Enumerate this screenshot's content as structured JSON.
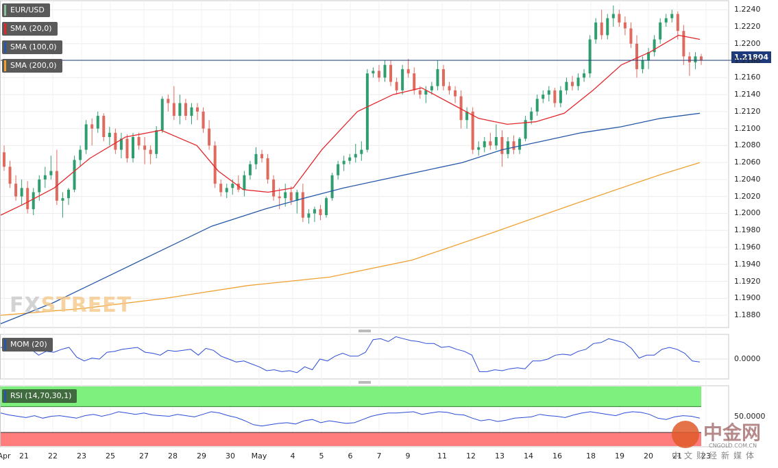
{
  "chart_data": {
    "type": "candlestick",
    "symbol": "EUR/USD",
    "indicators": [
      {
        "label": "SMA (20,0)",
        "color": "#e3262b"
      },
      {
        "label": "SMA (100,0)",
        "color": "#2457a8"
      },
      {
        "label": "SMA (200,0)",
        "color": "#f0a030"
      }
    ],
    "last_price": "1.21804",
    "y_ticks": [
      "1.2240",
      "1.2220",
      "1.2200",
      "1.2180",
      "1.2160",
      "1.2140",
      "1.2120",
      "1.2100",
      "1.2080",
      "1.2060",
      "1.2040",
      "1.2020",
      "1.2000",
      "1.1980",
      "1.1960",
      "1.1940",
      "1.1920",
      "1.1900",
      "1.1880"
    ],
    "ylim": [
      1.1868,
      1.2245
    ],
    "x_ticks": [
      "Apr",
      "21",
      "22",
      "23",
      "25",
      "27",
      "28",
      "29",
      "30",
      "May",
      "4",
      "5",
      "6",
      "7",
      "9",
      "11",
      "12",
      "13",
      "14",
      "16",
      "18",
      "19",
      "20",
      "21",
      "23"
    ],
    "candles": [
      [
        1.2072,
        1.208,
        1.205,
        1.2055
      ],
      [
        1.2055,
        1.2062,
        1.203,
        1.2035
      ],
      [
        1.2035,
        1.2045,
        1.2015,
        1.202
      ],
      [
        1.202,
        1.204,
        1.201,
        1.203
      ],
      [
        1.203,
        1.2038,
        1.2,
        1.2005
      ],
      [
        1.2005,
        1.203,
        1.1998,
        1.2025
      ],
      [
        1.2025,
        1.2045,
        1.2015,
        1.204
      ],
      [
        1.204,
        1.2055,
        1.203,
        1.2045
      ],
      [
        1.2045,
        1.2068,
        1.204,
        1.205
      ],
      [
        1.205,
        1.2075,
        1.201,
        1.2015
      ],
      [
        1.2015,
        1.2025,
        1.1995,
        1.2018
      ],
      [
        1.2018,
        1.203,
        1.201,
        1.2028
      ],
      [
        1.2028,
        1.2068,
        1.2025,
        1.2063
      ],
      [
        1.2063,
        1.208,
        1.2055,
        1.2075
      ],
      [
        1.2075,
        1.211,
        1.207,
        1.2105
      ],
      [
        1.2105,
        1.2112,
        1.208,
        1.21
      ],
      [
        1.21,
        1.212,
        1.2095,
        1.2115
      ],
      [
        1.2115,
        1.2118,
        1.2085,
        1.209
      ],
      [
        1.209,
        1.2102,
        1.208,
        1.2095
      ],
      [
        1.2095,
        1.21,
        1.207,
        1.2075
      ],
      [
        1.2075,
        1.2095,
        1.2065,
        1.2088
      ],
      [
        1.2088,
        1.2093,
        1.206,
        1.2065
      ],
      [
        1.2065,
        1.2095,
        1.206,
        1.209
      ],
      [
        1.209,
        1.2095,
        1.2075,
        1.208
      ],
      [
        1.208,
        1.209,
        1.2058,
        1.2075
      ],
      [
        1.2075,
        1.208,
        1.2058,
        1.207
      ],
      [
        1.207,
        1.2103,
        1.2065,
        1.2098
      ],
      [
        1.2098,
        1.2138,
        1.2095,
        1.2135
      ],
      [
        1.2135,
        1.214,
        1.212,
        1.213
      ],
      [
        1.213,
        1.215,
        1.211,
        1.2115
      ],
      [
        1.2115,
        1.214,
        1.2105,
        1.213
      ],
      [
        1.213,
        1.2135,
        1.211,
        1.2115
      ],
      [
        1.2115,
        1.213,
        1.2105,
        1.2125
      ],
      [
        1.2125,
        1.213,
        1.211,
        1.212
      ],
      [
        1.212,
        1.2125,
        1.2095,
        1.21
      ],
      [
        1.21,
        1.211,
        1.2075,
        1.208
      ],
      [
        1.208,
        1.2085,
        1.203,
        1.2035
      ],
      [
        1.2035,
        1.204,
        1.202,
        1.2025
      ],
      [
        1.2025,
        1.2035,
        1.2018,
        1.203
      ],
      [
        1.203,
        1.204,
        1.2022,
        1.2035
      ],
      [
        1.2035,
        1.2045,
        1.2025,
        1.2028
      ],
      [
        1.2028,
        1.205,
        1.202,
        1.2045
      ],
      [
        1.2045,
        1.2062,
        1.204,
        1.2058
      ],
      [
        1.2058,
        1.2078,
        1.2052,
        1.207
      ],
      [
        1.207,
        1.2075,
        1.206,
        1.2065
      ],
      [
        1.2065,
        1.207,
        1.2035,
        1.204
      ],
      [
        1.204,
        1.2045,
        1.2015,
        1.202
      ],
      [
        1.202,
        1.203,
        1.2005,
        1.2018
      ],
      [
        1.2018,
        1.2035,
        1.2008,
        1.2025
      ],
      [
        1.2025,
        1.2032,
        1.201,
        1.2015
      ],
      [
        1.2015,
        1.2028,
        1.2,
        1.2025
      ],
      [
        1.2025,
        1.2035,
        1.199,
        1.1995
      ],
      [
        1.1995,
        1.2005,
        1.1988,
        1.2
      ],
      [
        1.2,
        1.2008,
        1.199,
        1.2005
      ],
      [
        1.2005,
        1.201,
        1.1992,
        1.1998
      ],
      [
        1.1998,
        1.202,
        1.1995,
        1.2018
      ],
      [
        1.2018,
        1.2048,
        1.2015,
        1.2045
      ],
      [
        1.2045,
        1.2062,
        1.204,
        1.2058
      ],
      [
        1.2058,
        1.2068,
        1.205,
        1.2062
      ],
      [
        1.2062,
        1.207,
        1.2058,
        1.2066
      ],
      [
        1.2066,
        1.2082,
        1.206,
        1.207
      ],
      [
        1.207,
        1.2085,
        1.2062,
        1.2075
      ],
      [
        1.2075,
        1.217,
        1.2072,
        1.2165
      ],
      [
        1.2165,
        1.2172,
        1.216,
        1.2168
      ],
      [
        1.2168,
        1.2175,
        1.2155,
        1.216
      ],
      [
        1.216,
        1.218,
        1.2155,
        1.2175
      ],
      [
        1.2175,
        1.218,
        1.215,
        1.2155
      ],
      [
        1.2155,
        1.216,
        1.214,
        1.2145
      ],
      [
        1.2145,
        1.2175,
        1.214,
        1.217
      ],
      [
        1.217,
        1.2182,
        1.216,
        1.2165
      ],
      [
        1.2165,
        1.2172,
        1.214,
        1.2145
      ],
      [
        1.2145,
        1.215,
        1.2135,
        1.214
      ],
      [
        1.214,
        1.215,
        1.213,
        1.2145
      ],
      [
        1.2145,
        1.2155,
        1.214,
        1.215
      ],
      [
        1.215,
        1.218,
        1.2145,
        1.217
      ],
      [
        1.217,
        1.2175,
        1.2145,
        1.215
      ],
      [
        1.215,
        1.2155,
        1.214,
        1.2145
      ],
      [
        1.2145,
        1.215,
        1.213,
        1.2138
      ],
      [
        1.2138,
        1.2145,
        1.21,
        1.211
      ],
      [
        1.211,
        1.2125,
        1.21,
        1.212
      ],
      [
        1.212,
        1.2125,
        1.207,
        1.2075
      ],
      [
        1.2075,
        1.2085,
        1.2068,
        1.2078
      ],
      [
        1.2078,
        1.209,
        1.2072,
        1.2085
      ],
      [
        1.2085,
        1.2095,
        1.2075,
        1.208
      ],
      [
        1.208,
        1.2105,
        1.2075,
        1.209
      ],
      [
        1.209,
        1.2098,
        1.2055,
        1.207
      ],
      [
        1.207,
        1.209,
        1.2065,
        1.2085
      ],
      [
        1.2085,
        1.2092,
        1.207,
        1.2075
      ],
      [
        1.2075,
        1.209,
        1.207,
        1.2088
      ],
      [
        1.2088,
        1.2115,
        1.2085,
        1.211
      ],
      [
        1.211,
        1.2125,
        1.2105,
        1.212
      ],
      [
        1.212,
        1.214,
        1.2115,
        1.2135
      ],
      [
        1.2135,
        1.2145,
        1.213,
        1.214
      ],
      [
        1.214,
        1.215,
        1.2132,
        1.2145
      ],
      [
        1.2145,
        1.2148,
        1.2125,
        1.213
      ],
      [
        1.213,
        1.215,
        1.2125,
        1.2145
      ],
      [
        1.2145,
        1.216,
        1.214,
        1.2155
      ],
      [
        1.2155,
        1.2162,
        1.2145,
        1.215
      ],
      [
        1.215,
        1.2165,
        1.2145,
        1.216
      ],
      [
        1.216,
        1.217,
        1.2155,
        1.2165
      ],
      [
        1.2165,
        1.221,
        1.216,
        1.2205
      ],
      [
        1.2205,
        1.223,
        1.22,
        1.2225
      ],
      [
        1.2225,
        1.224,
        1.2205,
        1.221
      ],
      [
        1.221,
        1.2235,
        1.2205,
        1.223
      ],
      [
        1.223,
        1.2245,
        1.222,
        1.2235
      ],
      [
        1.2235,
        1.224,
        1.222,
        1.2225
      ],
      [
        1.2225,
        1.2232,
        1.221,
        1.2218
      ],
      [
        1.2218,
        1.2225,
        1.2195,
        1.22
      ],
      [
        1.22,
        1.221,
        1.216,
        1.217
      ],
      [
        1.217,
        1.2185,
        1.2165,
        1.218
      ],
      [
        1.218,
        1.2195,
        1.217,
        1.219
      ],
      [
        1.219,
        1.221,
        1.2185,
        1.2205
      ],
      [
        1.2205,
        1.223,
        1.22,
        1.2225
      ],
      [
        1.2225,
        1.2235,
        1.222,
        1.223
      ],
      [
        1.223,
        1.224,
        1.2225,
        1.2235
      ],
      [
        1.2235,
        1.2238,
        1.2205,
        1.2215
      ],
      [
        1.2215,
        1.2222,
        1.2175,
        1.2185
      ],
      [
        1.2185,
        1.219,
        1.2162,
        1.2178
      ],
      [
        1.2178,
        1.219,
        1.217,
        1.2185
      ],
      [
        1.2185,
        1.2188,
        1.2175,
        1.218
      ]
    ],
    "sma20": [
      [
        0,
        1.1998
      ],
      [
        6,
        1.201
      ],
      [
        15,
        1.203
      ],
      [
        25,
        1.2065
      ],
      [
        35,
        1.209
      ],
      [
        45,
        1.2098
      ],
      [
        55,
        1.208
      ],
      [
        61,
        1.205
      ],
      [
        68,
        1.2028
      ],
      [
        75,
        1.2025
      ],
      [
        82,
        1.203
      ],
      [
        90,
        1.2075
      ],
      [
        100,
        1.212
      ],
      [
        110,
        1.214
      ],
      [
        118,
        1.2148
      ],
      [
        126,
        1.213
      ],
      [
        134,
        1.2112
      ],
      [
        142,
        1.2105
      ],
      [
        150,
        1.2108
      ],
      [
        158,
        1.2118
      ],
      [
        166,
        1.2145
      ],
      [
        174,
        1.2175
      ],
      [
        182,
        1.219
      ],
      [
        190,
        1.221
      ],
      [
        196,
        1.2205
      ]
    ],
    "sma100": [
      [
        0,
        1.187
      ],
      [
        20,
        1.1895
      ],
      [
        40,
        1.1925
      ],
      [
        60,
        1.1955
      ],
      [
        80,
        1.1985
      ],
      [
        100,
        1.2005
      ],
      [
        115,
        1.2018
      ],
      [
        130,
        1.203
      ],
      [
        145,
        1.204
      ],
      [
        160,
        1.205
      ],
      [
        175,
        1.206
      ],
      [
        190,
        1.2075
      ],
      [
        205,
        1.2085
      ],
      [
        220,
        1.2095
      ],
      [
        235,
        1.2102
      ],
      [
        250,
        1.2112
      ],
      [
        265,
        1.2118
      ]
    ],
    "sma200": [
      [
        0,
        1.188
      ],
      [
        40,
        1.1888
      ],
      [
        80,
        1.19
      ],
      [
        120,
        1.1915
      ],
      [
        160,
        1.1925
      ],
      [
        200,
        1.1945
      ],
      [
        240,
        1.1978
      ],
      [
        280,
        1.2012
      ],
      [
        320,
        1.2045
      ],
      [
        340,
        1.206
      ]
    ],
    "mom": {
      "label": "MOM (20)",
      "zero_label": "0.0000"
    },
    "mom_values": [
      0.006,
      0.0055,
      0.006,
      0.0045,
      0.005,
      0.002,
      0.004,
      0.0035,
      0.005,
      0.006,
      0.001,
      -0.001,
      0.0005,
      0.0,
      0.0035,
      0.004,
      0.005,
      0.0055,
      0.006,
      0.0035,
      0.003,
      0.002,
      0.0045,
      0.004,
      0.0045,
      0.005,
      0.002,
      0.0055,
      0.0045,
      0.0015,
      0.0,
      -0.0015,
      -0.001,
      -0.0025,
      -0.004,
      -0.006,
      -0.0055,
      -0.0065,
      -0.006,
      -0.007,
      -0.004,
      -0.0055,
      0.0,
      -0.001,
      0.0015,
      0.003,
      0.0015,
      0.0015,
      0.0035,
      0.01,
      0.0105,
      0.009,
      0.0115,
      0.0105,
      0.0095,
      0.009,
      0.008,
      0.008,
      0.006,
      0.0065,
      0.005,
      0.004,
      0.002,
      -0.0065,
      -0.0065,
      -0.0055,
      -0.006,
      -0.005,
      -0.0045,
      -0.005,
      -0.001,
      -0.001,
      0.0,
      0.002,
      0.0025,
      0.002,
      0.004,
      0.005,
      0.008,
      0.0085,
      0.0105,
      0.0095,
      0.0085,
      0.0055,
      0.0005,
      0.002,
      0.002,
      0.005,
      0.006,
      0.005,
      0.003,
      -0.001,
      -0.0015
    ],
    "rsi": {
      "label": "RSI (14,70,30,1)",
      "level_label": "50.0000",
      "overbought": 70,
      "oversold": 30
    },
    "rsi_values": [
      60,
      57,
      55,
      53,
      56,
      52,
      55,
      56,
      54,
      52,
      56,
      58,
      55,
      58,
      62,
      60,
      58,
      60,
      57,
      56,
      55,
      58,
      56,
      54,
      58,
      62,
      60,
      56,
      53,
      48,
      42,
      40,
      42,
      44,
      45,
      43,
      48,
      50,
      45,
      48,
      46,
      44,
      45,
      50,
      55,
      58,
      60,
      60,
      61,
      62,
      58,
      60,
      62,
      61,
      58,
      57,
      52,
      48,
      50,
      47,
      49,
      52,
      53,
      54,
      58,
      56,
      55,
      53,
      57,
      60,
      62,
      60,
      58,
      56,
      60,
      62,
      61,
      58,
      52,
      50,
      54,
      56,
      55,
      52
    ]
  }
}
